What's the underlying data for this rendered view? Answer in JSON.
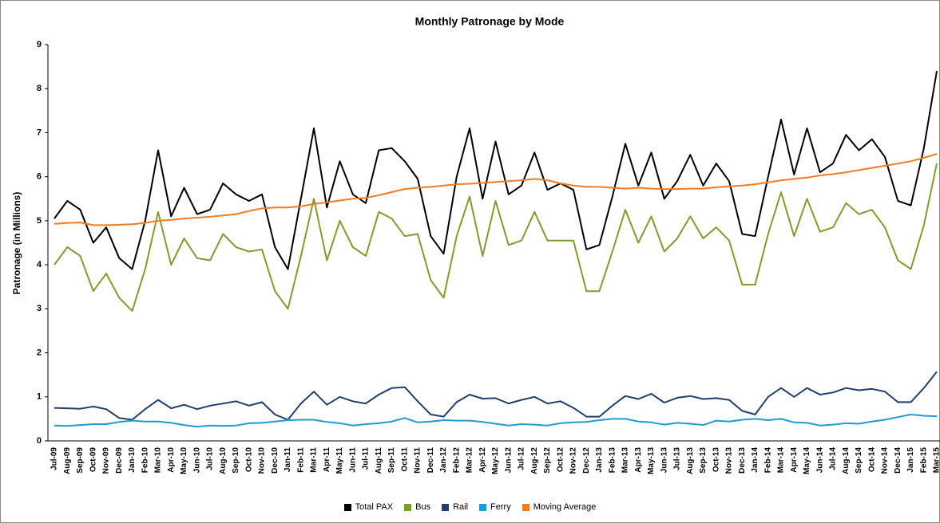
{
  "chart_data": {
    "type": "line",
    "title": "Monthly Patronage by Mode",
    "y_label": "Patronage (in Millions)",
    "categories": [
      "Jul-09",
      "Aug-09",
      "Sep-09",
      "Oct-09",
      "Nov-09",
      "Dec-09",
      "Jan-10",
      "Feb-10",
      "Mar-10",
      "Apr-10",
      "May-10",
      "Jun-10",
      "Jul-10",
      "Aug-10",
      "Sep-10",
      "Oct-10",
      "Nov-10",
      "Dec-10",
      "Jan-11",
      "Feb-11",
      "Mar-11",
      "Apr-11",
      "May-11",
      "Jun-11",
      "Jul-11",
      "Aug-11",
      "Sep-11",
      "Oct-11",
      "Nov-11",
      "Dec-11",
      "Jan-12",
      "Feb-12",
      "Mar-12",
      "Apr-12",
      "May-12",
      "Jun-12",
      "Jul-12",
      "Aug-12",
      "Sep-12",
      "Oct-12",
      "Nov-12",
      "Dec-12",
      "Jan-13",
      "Feb-13",
      "Mar-13",
      "Apr-13",
      "May-13",
      "Jun-13",
      "Jul-13",
      "Aug-13",
      "Sep-13",
      "Oct-13",
      "Nov-13",
      "Dec-13",
      "Jan-14",
      "Feb-14",
      "Mar-14",
      "Apr-14",
      "May-14",
      "Jun-14",
      "Jul-14",
      "Aug-14",
      "Sep-14",
      "Oct-14",
      "Nov-14",
      "Dec-14",
      "Jan-15",
      "Feb-15",
      "Mar-15"
    ],
    "series": [
      {
        "name": "Total PAX",
        "color": "#000000",
        "values": [
          5.05,
          5.45,
          5.25,
          4.5,
          4.85,
          4.15,
          3.9,
          5.0,
          6.6,
          5.1,
          5.75,
          5.15,
          5.25,
          5.85,
          5.6,
          5.45,
          5.6,
          4.4,
          3.9,
          5.5,
          7.1,
          5.3,
          6.35,
          5.6,
          5.4,
          6.6,
          6.65,
          6.35,
          5.95,
          4.65,
          4.25,
          6.0,
          7.1,
          5.5,
          6.8,
          5.6,
          5.8,
          6.55,
          5.7,
          5.85,
          5.7,
          4.35,
          4.45,
          5.55,
          6.75,
          5.8,
          6.55,
          5.5,
          5.9,
          6.5,
          5.8,
          6.3,
          5.9,
          4.7,
          4.65,
          6.0,
          7.3,
          6.05,
          7.1,
          6.1,
          6.3,
          6.95,
          6.6,
          6.85,
          6.45,
          5.45,
          5.35,
          6.65,
          8.4
        ]
      },
      {
        "name": "Bus",
        "color": "#7aa02c",
        "values": [
          4.0,
          4.4,
          4.2,
          3.4,
          3.8,
          3.25,
          2.95,
          3.9,
          5.2,
          4.0,
          4.6,
          4.15,
          4.1,
          4.7,
          4.4,
          4.3,
          4.35,
          3.4,
          3.0,
          4.2,
          5.5,
          4.1,
          5.0,
          4.4,
          4.2,
          5.2,
          5.05,
          4.65,
          4.7,
          3.65,
          3.25,
          4.65,
          5.55,
          4.2,
          5.45,
          4.45,
          4.55,
          5.2,
          4.55,
          4.55,
          4.55,
          3.4,
          3.4,
          4.3,
          5.25,
          4.5,
          5.1,
          4.3,
          4.6,
          5.1,
          4.6,
          4.85,
          4.55,
          3.55,
          3.55,
          4.7,
          5.65,
          4.65,
          5.5,
          4.75,
          4.85,
          5.4,
          5.15,
          5.25,
          4.85,
          4.1,
          3.9,
          4.9,
          6.3
        ]
      },
      {
        "name": "Rail",
        "color": "#1f3f6e",
        "values": [
          0.75,
          0.74,
          0.73,
          0.78,
          0.72,
          0.52,
          0.48,
          0.72,
          0.93,
          0.74,
          0.82,
          0.72,
          0.8,
          0.85,
          0.9,
          0.8,
          0.88,
          0.6,
          0.48,
          0.85,
          1.12,
          0.82,
          1.0,
          0.9,
          0.85,
          1.05,
          1.2,
          1.22,
          0.9,
          0.6,
          0.55,
          0.88,
          1.05,
          0.96,
          0.97,
          0.85,
          0.93,
          1.0,
          0.85,
          0.9,
          0.75,
          0.55,
          0.55,
          0.8,
          1.02,
          0.95,
          1.07,
          0.87,
          0.98,
          1.02,
          0.95,
          0.97,
          0.93,
          0.68,
          0.6,
          1.0,
          1.2,
          1.0,
          1.2,
          1.05,
          1.1,
          1.2,
          1.15,
          1.18,
          1.12,
          0.88,
          0.88,
          1.2,
          1.57
        ]
      },
      {
        "name": "Ferry",
        "color": "#1e9ad6",
        "values": [
          0.35,
          0.34,
          0.36,
          0.38,
          0.38,
          0.43,
          0.46,
          0.44,
          0.44,
          0.41,
          0.36,
          0.32,
          0.35,
          0.34,
          0.35,
          0.4,
          0.41,
          0.44,
          0.47,
          0.48,
          0.48,
          0.43,
          0.4,
          0.35,
          0.38,
          0.4,
          0.44,
          0.52,
          0.42,
          0.44,
          0.47,
          0.46,
          0.46,
          0.43,
          0.39,
          0.35,
          0.38,
          0.37,
          0.35,
          0.4,
          0.42,
          0.43,
          0.47,
          0.5,
          0.5,
          0.44,
          0.42,
          0.37,
          0.41,
          0.39,
          0.36,
          0.46,
          0.44,
          0.48,
          0.5,
          0.47,
          0.5,
          0.42,
          0.41,
          0.35,
          0.37,
          0.4,
          0.39,
          0.44,
          0.48,
          0.54,
          0.6,
          0.57,
          0.56
        ]
      },
      {
        "name": "Moving Average",
        "color": "#f47c20",
        "values": [
          4.93,
          4.95,
          4.96,
          4.9,
          4.9,
          4.91,
          4.92,
          4.95,
          5.0,
          5.02,
          5.05,
          5.07,
          5.09,
          5.12,
          5.15,
          5.22,
          5.28,
          5.3,
          5.3,
          5.33,
          5.38,
          5.42,
          5.46,
          5.5,
          5.52,
          5.58,
          5.65,
          5.72,
          5.75,
          5.77,
          5.8,
          5.83,
          5.84,
          5.86,
          5.88,
          5.9,
          5.92,
          5.95,
          5.92,
          5.85,
          5.8,
          5.77,
          5.77,
          5.75,
          5.73,
          5.75,
          5.73,
          5.72,
          5.72,
          5.73,
          5.73,
          5.76,
          5.78,
          5.8,
          5.83,
          5.87,
          5.92,
          5.95,
          5.98,
          6.03,
          6.06,
          6.1,
          6.15,
          6.2,
          6.25,
          6.3,
          6.35,
          6.43,
          6.52
        ]
      }
    ],
    "ylim": [
      0,
      9
    ],
    "yticks": [
      0,
      1,
      2,
      3,
      4,
      5,
      6,
      7,
      8,
      9
    ],
    "grid": false,
    "legend": "bottom"
  }
}
